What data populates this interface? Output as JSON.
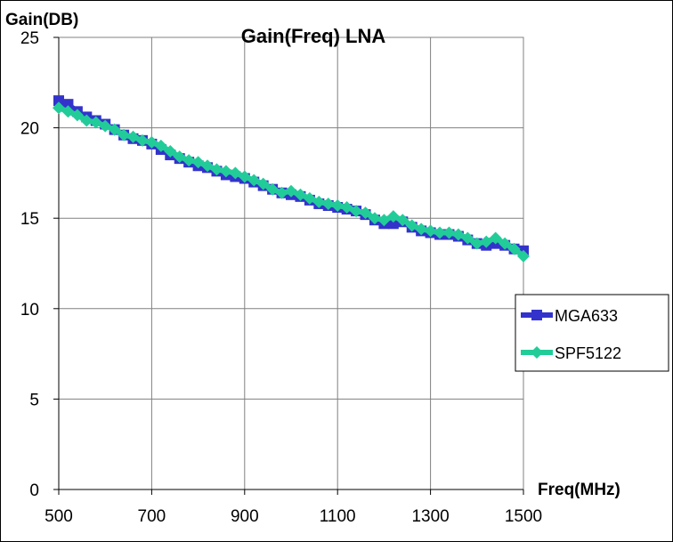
{
  "chart_data": {
    "type": "line",
    "title": "Gain(Freq) LNA",
    "ylabel": "Gain(DB)",
    "xlabel": "Freq(MHz)",
    "xlim": [
      500,
      1500
    ],
    "ylim": [
      0,
      25
    ],
    "x_ticks": [
      "500",
      "700",
      "900",
      "1100",
      "1300",
      "1500"
    ],
    "y_ticks": [
      "0",
      "5",
      "10",
      "15",
      "20",
      "25"
    ],
    "grid": true,
    "legend_position": "right",
    "series": [
      {
        "name": "MGA633",
        "color": "#3333cc",
        "marker": "square",
        "x": [
          500,
          520,
          540,
          560,
          580,
          600,
          620,
          640,
          660,
          680,
          700,
          720,
          740,
          760,
          780,
          800,
          820,
          840,
          860,
          880,
          900,
          920,
          940,
          960,
          980,
          1000,
          1020,
          1040,
          1060,
          1080,
          1100,
          1120,
          1140,
          1160,
          1180,
          1200,
          1220,
          1240,
          1260,
          1280,
          1300,
          1320,
          1340,
          1360,
          1380,
          1400,
          1420,
          1440,
          1460,
          1480,
          1500
        ],
        "y": [
          21.5,
          21.3,
          20.9,
          20.6,
          20.4,
          20.2,
          19.9,
          19.6,
          19.4,
          19.3,
          19.1,
          18.8,
          18.5,
          18.3,
          18.1,
          17.9,
          17.8,
          17.6,
          17.4,
          17.3,
          17.2,
          17.0,
          16.8,
          16.6,
          16.4,
          16.3,
          16.2,
          16.0,
          15.8,
          15.7,
          15.6,
          15.5,
          15.4,
          15.2,
          14.9,
          14.7,
          14.7,
          14.8,
          14.5,
          14.3,
          14.2,
          14.1,
          14.1,
          14.0,
          13.8,
          13.6,
          13.5,
          13.6,
          13.5,
          13.3,
          13.2
        ]
      },
      {
        "name": "SPF5122",
        "color": "#22cc99",
        "marker": "diamond",
        "x": [
          500,
          520,
          540,
          560,
          580,
          600,
          620,
          640,
          660,
          680,
          700,
          720,
          740,
          760,
          780,
          800,
          820,
          840,
          860,
          880,
          900,
          920,
          940,
          960,
          980,
          1000,
          1020,
          1040,
          1060,
          1080,
          1100,
          1120,
          1140,
          1160,
          1180,
          1200,
          1220,
          1240,
          1260,
          1280,
          1300,
          1320,
          1340,
          1360,
          1380,
          1400,
          1420,
          1440,
          1460,
          1480,
          1500
        ],
        "y": [
          21.1,
          20.9,
          20.7,
          20.4,
          20.3,
          20.1,
          19.9,
          19.6,
          19.5,
          19.3,
          19.2,
          19.0,
          18.7,
          18.4,
          18.2,
          18.1,
          17.9,
          17.7,
          17.6,
          17.5,
          17.3,
          17.1,
          16.9,
          16.6,
          16.4,
          16.5,
          16.3,
          16.1,
          15.9,
          15.8,
          15.7,
          15.6,
          15.4,
          15.3,
          15.0,
          14.9,
          15.1,
          14.9,
          14.6,
          14.4,
          14.3,
          14.2,
          14.2,
          14.1,
          13.9,
          13.6,
          13.7,
          13.9,
          13.6,
          13.3,
          12.9
        ]
      }
    ]
  }
}
